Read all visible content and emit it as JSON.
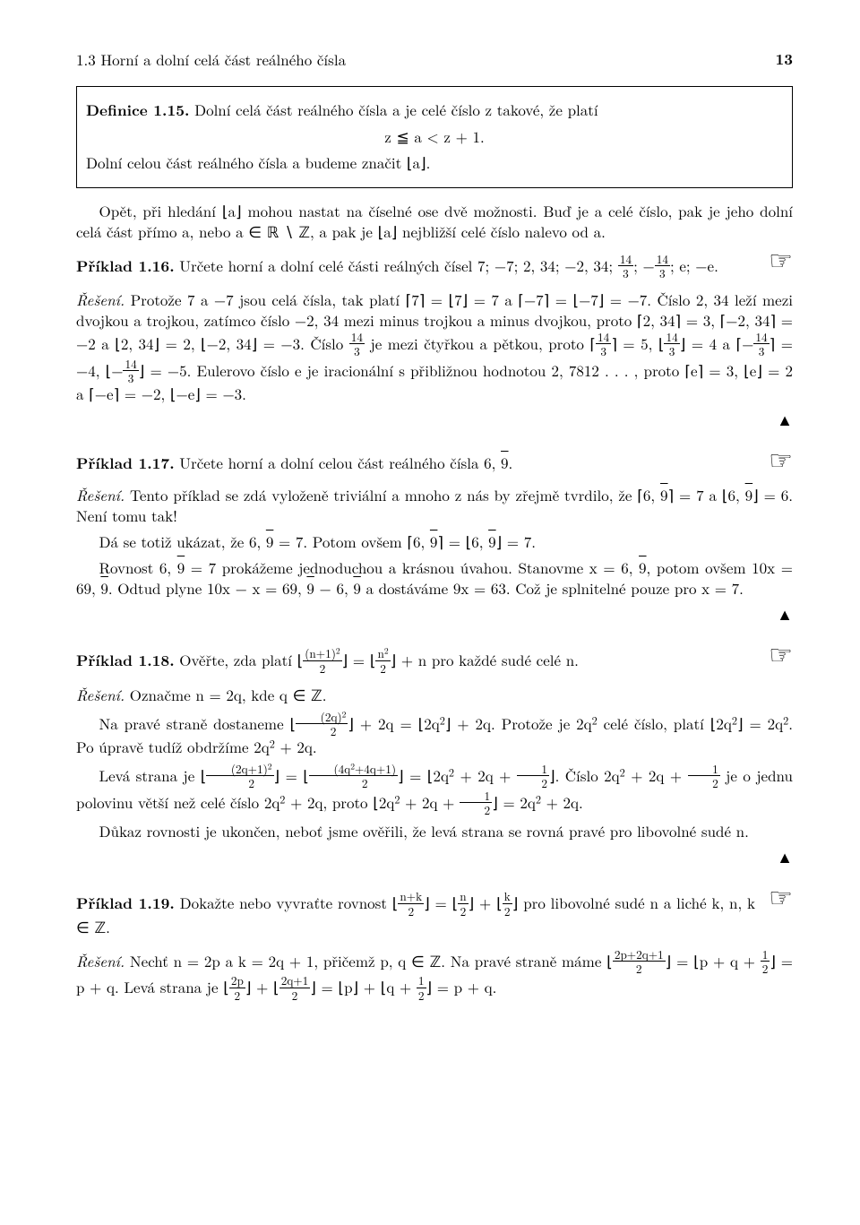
{
  "page": {
    "running_head": "1.3 Horní a dolní celá část reálného čísla",
    "page_number": "13"
  },
  "def": {
    "label": "Definice 1.15.",
    "text1": " Dolní celá část reálného čísla a je celé číslo z takové, že platí",
    "formula": "z ≦ a < z + 1.",
    "text2": "Dolní celou část reálného čísla a budeme značit ⌊a⌋."
  },
  "para_after_def": "Opět, při hledání ⌊a⌋ mohou nastat na číselné ose dvě možnosti. Buď je a celé číslo, pak je jeho dolní celá část přímo a, nebo a ∈ ℝ ∖ ℤ, a pak je ⌊a⌋ nejbližší celé číslo nalevo od a.",
  "ex116": {
    "label": "Příklad 1.16.",
    "stmt_a": " Určete horní a dolní celé části reálných čísel 7; −7; 2, 34; −2, 34; ",
    "stmt_b": "; e; −e.",
    "sol_label": "Řešení.",
    "sol_a": " Protože 7 a −7 jsou celá čísla, tak platí ⌈7⌉ = ⌊7⌋ = 7 a ⌈−7⌉ = ⌊−7⌋ = −7. Číslo 2, 34 leží mezi dvojkou a trojkou, zatímco číslo −2, 34 mezi minus trojkou a minus dvojkou, proto ⌈2, 34⌉ = 3, ⌈−2, 34⌉ = −2 a ⌊2, 34⌋ = 2, ⌊−2, 34⌋ = −3. Číslo ",
    "sol_b": " je mezi čtyřkou a pětkou, proto ⌈",
    "sol_c": "⌉ = 5, ⌊",
    "sol_d": "⌋ = 4 a ⌈−",
    "sol_e": "⌉ = −4, ⌊−",
    "sol_f": "⌋ = −5. Eulerovo číslo e je iracionální s přibližnou hodnotou 2, 7812 . . . , proto ⌈e⌉ = 3, ⌊e⌋ = 2 a ⌈−e⌉ = −2, ⌊−e⌋ = −3."
  },
  "ex117": {
    "label": "Příklad 1.17.",
    "stmt": " Určete horní a dolní celou část reálného čísla 6, ",
    "ov9": "9",
    "sol_label": "Řešení.",
    "sol1a": " Tento příklad se zdá vyloženě triviální a mnoho z nás by zřejmě tvrdilo, že ⌈6, ",
    "sol1b": "⌉ = 7 a ⌊6, ",
    "sol1c": "⌋ = 6. Není tomu tak!",
    "sol2a": "Dá se totiž ukázat, že 6, ",
    "sol2b": " = 7. Potom ovšem ⌈6, ",
    "sol2c": "⌉ = ⌊6, ",
    "sol2d": "⌋ = 7.",
    "sol3a": "Rovnost 6, ",
    "sol3b": " = 7 prokážeme jednoduchou a krásnou úvahou. Stanovme x = 6, ",
    "sol3c": ", potom ovšem 10x = 69, ",
    "sol3d": ". Odtud plyne 10x − x = 69, ",
    "sol3e": " − 6, ",
    "sol3f": " a dostáváme 9x = 63. Což je splnitelné pouze pro x = 7."
  },
  "ex118": {
    "label": "Příklad 1.18.",
    "stmt_a": " Ověřte, zda platí ⌊",
    "stmt_b": "⌋ = ⌊",
    "stmt_c": "⌋ + n pro každé sudé celé n.",
    "sol_label": "Řešení.",
    "sol1": " Označme n = 2q, kde q ∈ ℤ.",
    "sol2a": "Na pravé straně dostaneme ⌊",
    "sol2b": "⌋ + 2q = ⌊2q",
    "sq": "2",
    "sol2c": "⌋ + 2q. Protože je 2q",
    "sol2d": " celé číslo, platí ⌊2q",
    "sol2e": "⌋ = 2q",
    "sol2f": ". Po úpravě tudíž obdržíme 2q",
    "sol2g": " + 2q.",
    "sol3a": "Levá strana je ⌊",
    "sol3b": "⌋ = ⌊",
    "sol3c": "⌋ = ⌊2q",
    "sol3d": " + 2q + ",
    "sol3e": "⌋. Číslo 2q",
    "sol3f": " + 2q + ",
    "sol3g": " je o jednu polovinu větší než celé číslo 2q",
    "sol3h": " + 2q, proto ⌊2q",
    "sol3i": " + 2q + ",
    "sol3j": "⌋ = 2q",
    "sol3k": " + 2q.",
    "sol4": "Důkaz rovnosti je ukončen, neboť jsme ověřili, že levá strana se rovná pravé pro libovolné sudé n."
  },
  "ex119": {
    "label": "Příklad 1.19.",
    "stmt_a": " Dokažte nebo vyvraťte rovnost ⌊",
    "stmt_b": "⌋ = ⌊",
    "stmt_c": "⌋ + ⌊",
    "stmt_d": "⌋ pro libovolné sudé n a liché k, n, k ∈ ℤ.",
    "sol_label": "Řešení.",
    "sol_a": " Nechť n = 2p a k = 2q + 1, přičemž p, q ∈ ℤ. Na pravé straně máme ⌊",
    "sol_b": "⌋ = ⌊p + q + ",
    "sol_c": "⌋ = p + q. Levá strana je ⌊",
    "sol_d": "⌋ + ⌊",
    "sol_e": "⌋ = ⌊p⌋ + ⌊q + ",
    "sol_f": "⌋ = p + q."
  },
  "frac": {
    "n14": "14",
    "d3": "3",
    "np1sq": "(n+1)",
    "two": "2",
    "nsq": "n",
    "twoq_sq": "(2q)",
    "twoqp1_sq": "(2q+1)",
    "fourq": "(4q",
    "fourq_b": "+4q+1)",
    "one": "1",
    "npk": "n+k",
    "n": "n",
    "k": "k",
    "twop2qp1": "2p+2q+1",
    "twop": "2p",
    "twoqp1": "2q+1"
  },
  "icons": {
    "hand": "☞",
    "tri": "▲"
  }
}
